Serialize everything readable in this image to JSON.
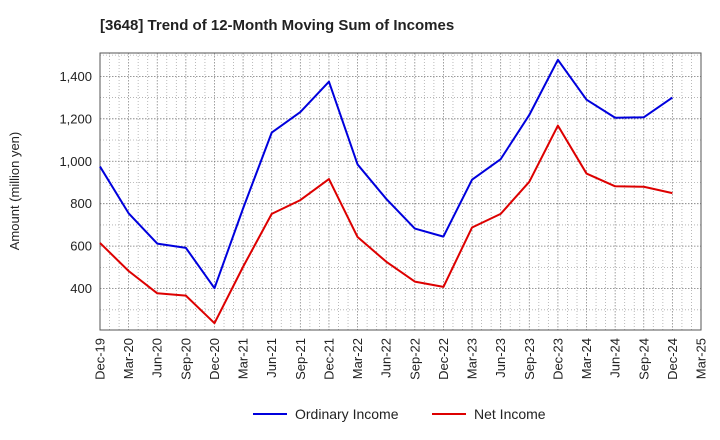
{
  "chart_data": {
    "type": "line",
    "title": "[3648]  Trend of 12-Month Moving Sum of Incomes",
    "xlabel": "",
    "ylabel": "Amount (million yen)",
    "categories": [
      "Dec-19",
      "Mar-20",
      "Jun-20",
      "Sep-20",
      "Dec-20",
      "Mar-21",
      "Jun-21",
      "Sep-21",
      "Dec-21",
      "Mar-22",
      "Jun-22",
      "Sep-22",
      "Dec-22",
      "Mar-23",
      "Jun-23",
      "Sep-23",
      "Dec-23",
      "Mar-24",
      "Jun-24",
      "Sep-24",
      "Dec-24",
      "Mar-25"
    ],
    "series": [
      {
        "name": "Ordinary Income",
        "color": "#0000dd",
        "values": [
          975,
          755,
          612,
          592,
          402,
          778,
          1135,
          1232,
          1375,
          985,
          823,
          683,
          645,
          913,
          1010,
          1218,
          1478,
          1290,
          1205,
          1207,
          1300,
          null
        ]
      },
      {
        "name": "Net Income",
        "color": "#dd0000",
        "values": [
          615,
          483,
          378,
          367,
          237,
          503,
          752,
          817,
          916,
          643,
          527,
          433,
          408,
          688,
          752,
          903,
          1168,
          942,
          882,
          880,
          850,
          null
        ]
      }
    ],
    "ylim": [
      205,
      1510
    ],
    "yticks": [
      400,
      600,
      800,
      1000,
      1200,
      1400
    ],
    "ytick_labels": [
      "400",
      "600",
      "800",
      "1,000",
      "1,200",
      "1,400"
    ],
    "grid": true,
    "legend_position": "bottom-center"
  }
}
